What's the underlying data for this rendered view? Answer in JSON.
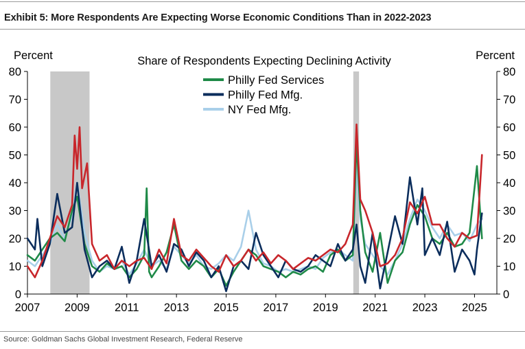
{
  "exhibit_title": "Exhibit 5: More Respondents Are Expecting Worse Economic Conditions Than in 2022-2023",
  "source": "Source: Goldman Sachs Global Investment Research, Federal Reserve",
  "colors": {
    "philly_services": "#1f8a48",
    "philly_mfg": "#0b2d5c",
    "ny_mfg": "#a9cfe9",
    "red_line": "#c8262b",
    "recession_shading": "#c8c8c8"
  },
  "chart_data": {
    "type": "line",
    "title": "Share of Respondents Expecting Declining Activity",
    "ylabel_left": "Percent",
    "ylabel_right": "Percent",
    "ylim": [
      0,
      80
    ],
    "yticks": [
      0,
      10,
      20,
      30,
      40,
      50,
      60,
      70,
      80
    ],
    "xlim": [
      2007,
      2025.9
    ],
    "xticks": [
      2007,
      2009,
      2011,
      2013,
      2015,
      2017,
      2019,
      2021,
      2023,
      2025
    ],
    "xtick_labels": [
      "2007",
      "2009",
      "2011",
      "2013",
      "2015",
      "2017",
      "2019",
      "2021",
      "2023",
      "2025"
    ],
    "legend_position": "top-center",
    "recession_periods": [
      [
        2007.92,
        2009.5
      ],
      [
        2020.12,
        2020.35
      ]
    ],
    "series": [
      {
        "name": "NY Fed Mfg.",
        "color": "#a9cfe9",
        "x": [
          2007.0,
          2007.3,
          2007.6,
          2007.9,
          2008.2,
          2008.5,
          2008.8,
          2009.0,
          2009.3,
          2009.6,
          2009.9,
          2010.2,
          2010.5,
          2010.8,
          2011.1,
          2011.4,
          2011.7,
          2012.0,
          2012.3,
          2012.6,
          2012.9,
          2013.2,
          2013.5,
          2013.8,
          2014.1,
          2014.4,
          2014.7,
          2015.0,
          2015.3,
          2015.6,
          2015.9,
          2016.2,
          2016.5,
          2016.8,
          2017.1,
          2017.4,
          2017.7,
          2018.0,
          2018.3,
          2018.6,
          2018.9,
          2019.2,
          2019.5,
          2019.8,
          2020.1,
          2020.25,
          2020.4,
          2020.6,
          2020.9,
          2021.2,
          2021.5,
          2021.8,
          2022.1,
          2022.4,
          2022.7,
          2023.0,
          2023.3,
          2023.6,
          2023.9,
          2024.2,
          2024.5,
          2024.8,
          2025.1,
          2025.3
        ],
        "values": [
          12,
          10,
          14,
          18,
          25,
          20,
          28,
          40,
          22,
          12,
          8,
          10,
          9,
          12,
          7,
          11,
          16,
          10,
          12,
          9,
          17,
          14,
          11,
          14,
          10,
          9,
          11,
          14,
          12,
          17,
          30,
          16,
          11,
          10,
          8,
          9,
          8,
          9,
          10,
          9,
          13,
          15,
          16,
          14,
          12,
          45,
          27,
          18,
          14,
          10,
          7,
          12,
          18,
          27,
          34,
          30,
          24,
          20,
          25,
          21,
          22,
          19,
          25,
          27
        ]
      },
      {
        "name": "Philly Fed Services",
        "color": "#1f8a48",
        "x": [
          2007.0,
          2007.3,
          2007.6,
          2007.9,
          2008.2,
          2008.5,
          2008.8,
          2009.0,
          2009.3,
          2009.6,
          2009.9,
          2010.2,
          2010.5,
          2010.8,
          2011.1,
          2011.4,
          2011.7,
          2011.8,
          2011.9,
          2012.0,
          2012.3,
          2012.6,
          2012.9,
          2013.2,
          2013.5,
          2013.8,
          2014.1,
          2014.4,
          2014.7,
          2015.0,
          2015.3,
          2015.6,
          2015.9,
          2016.2,
          2016.5,
          2016.8,
          2017.1,
          2017.4,
          2017.7,
          2018.0,
          2018.3,
          2018.6,
          2018.9,
          2019.2,
          2019.5,
          2019.8,
          2020.1,
          2020.25,
          2020.4,
          2020.6,
          2020.9,
          2021.2,
          2021.5,
          2021.8,
          2022.1,
          2022.4,
          2022.7,
          2023.0,
          2023.3,
          2023.6,
          2023.9,
          2024.2,
          2024.5,
          2024.8,
          2025.1,
          2025.3
        ],
        "values": [
          14,
          12,
          16,
          20,
          22,
          19,
          30,
          35,
          18,
          10,
          8,
          11,
          9,
          10,
          6,
          9,
          14,
          38,
          8,
          6,
          10,
          15,
          25,
          12,
          9,
          12,
          10,
          6,
          9,
          3,
          8,
          12,
          16,
          14,
          10,
          9,
          8,
          6,
          8,
          7,
          9,
          10,
          8,
          14,
          16,
          12,
          14,
          55,
          30,
          15,
          8,
          22,
          4,
          12,
          15,
          25,
          32,
          28,
          20,
          18,
          22,
          17,
          18,
          22,
          46,
          20
        ]
      },
      {
        "name": "Philly Fed Mfg.",
        "color": "#0b2d5c",
        "x": [
          2007.0,
          2007.3,
          2007.4,
          2007.6,
          2007.9,
          2008.2,
          2008.5,
          2008.8,
          2009.0,
          2009.3,
          2009.6,
          2009.9,
          2010.2,
          2010.5,
          2010.8,
          2011.1,
          2011.4,
          2011.7,
          2012.0,
          2012.3,
          2012.6,
          2012.9,
          2013.2,
          2013.5,
          2013.8,
          2014.1,
          2014.4,
          2014.7,
          2015.0,
          2015.3,
          2015.6,
          2015.9,
          2016.2,
          2016.5,
          2016.8,
          2017.1,
          2017.4,
          2017.7,
          2018.0,
          2018.3,
          2018.6,
          2018.9,
          2019.2,
          2019.5,
          2019.8,
          2020.1,
          2020.25,
          2020.4,
          2020.6,
          2020.9,
          2021.2,
          2021.5,
          2021.8,
          2022.1,
          2022.4,
          2022.7,
          2022.9,
          2023.0,
          2023.3,
          2023.6,
          2023.9,
          2024.2,
          2024.5,
          2024.8,
          2025.0,
          2025.1,
          2025.3
        ],
        "values": [
          20,
          16,
          27,
          10,
          18,
          36,
          22,
          24,
          40,
          16,
          6,
          10,
          12,
          9,
          17,
          4,
          12,
          27,
          10,
          14,
          8,
          18,
          16,
          10,
          15,
          12,
          6,
          10,
          1,
          10,
          12,
          9,
          22,
          14,
          10,
          6,
          12,
          9,
          8,
          10,
          14,
          12,
          10,
          18,
          12,
          16,
          25,
          10,
          4,
          22,
          2,
          15,
          28,
          18,
          42,
          25,
          38,
          14,
          20,
          14,
          26,
          8,
          16,
          12,
          7,
          16,
          29
        ]
      },
      {
        "name": "",
        "color": "#c8262b",
        "x": [
          2007.0,
          2007.3,
          2007.6,
          2007.9,
          2008.2,
          2008.5,
          2008.8,
          2008.9,
          2009.0,
          2009.1,
          2009.2,
          2009.4,
          2009.6,
          2009.9,
          2010.2,
          2010.5,
          2010.8,
          2011.1,
          2011.4,
          2011.7,
          2012.0,
          2012.3,
          2012.6,
          2012.9,
          2013.2,
          2013.5,
          2013.8,
          2014.1,
          2014.4,
          2014.7,
          2015.0,
          2015.3,
          2015.6,
          2015.9,
          2016.2,
          2016.5,
          2016.8,
          2017.1,
          2017.4,
          2017.7,
          2018.0,
          2018.3,
          2018.6,
          2018.9,
          2019.2,
          2019.5,
          2019.8,
          2020.1,
          2020.25,
          2020.4,
          2020.6,
          2020.9,
          2021.2,
          2021.5,
          2021.8,
          2022.1,
          2022.4,
          2022.7,
          2023.0,
          2023.3,
          2023.6,
          2023.9,
          2024.2,
          2024.5,
          2024.8,
          2025.1,
          2025.3
        ],
        "values": [
          10,
          6,
          12,
          20,
          28,
          24,
          32,
          57,
          45,
          60,
          38,
          47,
          18,
          12,
          14,
          9,
          12,
          10,
          12,
          13,
          9,
          16,
          11,
          27,
          14,
          12,
          16,
          13,
          10,
          8,
          14,
          10,
          12,
          16,
          12,
          15,
          11,
          14,
          12,
          9,
          11,
          13,
          12,
          14,
          16,
          15,
          18,
          25,
          61,
          34,
          30,
          22,
          10,
          11,
          14,
          20,
          33,
          29,
          35,
          25,
          25,
          20,
          17,
          22,
          20,
          21,
          50
        ]
      }
    ]
  }
}
